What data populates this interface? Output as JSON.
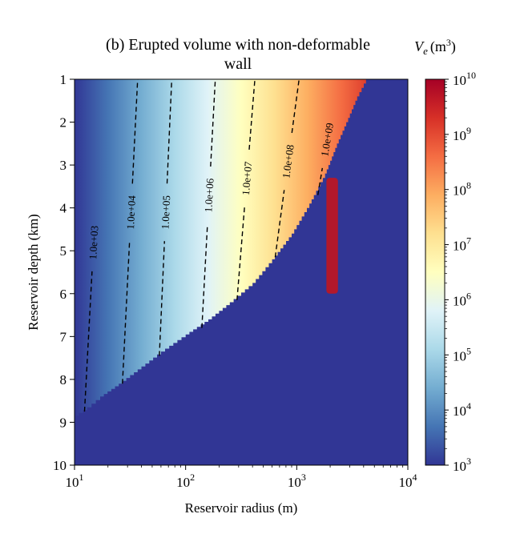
{
  "chart_data": {
    "type": "heatmap",
    "title_line1": "(b) Erupted volume with non-deformable",
    "title_line2": "wall",
    "xlabel": "Reservoir radius (m)",
    "ylabel": "Reservoir depth (km)",
    "x_scale": "log",
    "xlim": [
      10,
      10000
    ],
    "ylim": [
      10,
      1
    ],
    "x_ticks": [
      {
        "base": "10",
        "exp": "1",
        "value": 10
      },
      {
        "base": "10",
        "exp": "2",
        "value": 100
      },
      {
        "base": "10",
        "exp": "3",
        "value": 1000
      },
      {
        "base": "10",
        "exp": "4",
        "value": 10000
      }
    ],
    "y_ticks": [
      "1",
      "2",
      "3",
      "4",
      "5",
      "6",
      "7",
      "8",
      "9",
      "10"
    ],
    "colorbar": {
      "label_symbol": "V",
      "label_sub": "e",
      "label_unit": "(m",
      "label_unit_exp": "3",
      "label_unit_close": ")",
      "scale": "log",
      "range": [
        1000,
        10000000000
      ],
      "colormap": "RdYlBu_r",
      "ticks": [
        {
          "base": "10",
          "exp": "10",
          "value": 10000000000
        },
        {
          "base": "10",
          "exp": "9",
          "value": 1000000000
        },
        {
          "base": "10",
          "exp": "8",
          "value": 100000000
        },
        {
          "base": "10",
          "exp": "7",
          "value": 10000000
        },
        {
          "base": "10",
          "exp": "6",
          "value": 1000000
        },
        {
          "base": "10",
          "exp": "5",
          "value": 100000
        },
        {
          "base": "10",
          "exp": "4",
          "value": 10000
        },
        {
          "base": "10",
          "exp": "3",
          "value": 1000
        }
      ]
    },
    "no_eruption_boundary": [
      {
        "radius_m": 10,
        "depth_km": 8.85
      },
      {
        "radius_m": 13,
        "depth_km": 8.65
      },
      {
        "radius_m": 17,
        "depth_km": 8.4
      },
      {
        "radius_m": 25,
        "depth_km": 8.1
      },
      {
        "radius_m": 40,
        "depth_km": 7.7
      },
      {
        "radius_m": 60,
        "depth_km": 7.35
      },
      {
        "radius_m": 100,
        "depth_km": 6.95
      },
      {
        "radius_m": 160,
        "depth_km": 6.6
      },
      {
        "radius_m": 250,
        "depth_km": 6.2
      },
      {
        "radius_m": 400,
        "depth_km": 5.75
      },
      {
        "radius_m": 600,
        "depth_km": 5.2
      },
      {
        "radius_m": 900,
        "depth_km": 4.6
      },
      {
        "radius_m": 1300,
        "depth_km": 3.9
      },
      {
        "radius_m": 1800,
        "depth_km": 3.2
      },
      {
        "radius_m": 2300,
        "depth_km": 2.5
      },
      {
        "radius_m": 2900,
        "depth_km": 1.9
      },
      {
        "radius_m": 3500,
        "depth_km": 1.4
      },
      {
        "radius_m": 4200,
        "depth_km": 1.0
      }
    ],
    "isolated_region": {
      "radius_min_m": 1850,
      "radius_max_m": 2350,
      "depth_top_km": 3.3,
      "depth_bottom_km": 6.0
    },
    "contours": [
      {
        "label": "1.0e+03",
        "value": 1000,
        "points": [
          [
            12.3,
            8.75
          ],
          [
            14.3,
            5.6
          ]
        ],
        "label_at": [
          12.8,
          4.8
        ]
      },
      {
        "label": "1.0e+04",
        "value": 10000,
        "points": [
          [
            27,
            8.1
          ],
          [
            37,
            1.0
          ]
        ],
        "label_at": [
          29,
          4.1
        ]
      },
      {
        "label": "1.0e+05",
        "value": 100000,
        "points": [
          [
            58,
            7.45
          ],
          [
            75,
            1.0
          ]
        ],
        "label_at": [
          62,
          4.1
        ]
      },
      {
        "label": "1.0e+06",
        "value": 1000000,
        "points": [
          [
            140,
            6.8
          ],
          [
            185,
            1.0
          ]
        ],
        "label_at": [
          146,
          3.7
        ]
      },
      {
        "label": "1.0e+07",
        "value": 10000000,
        "points": [
          [
            290,
            6.15
          ],
          [
            420,
            1.0
          ]
        ],
        "label_at": [
          315,
          3.3
        ]
      },
      {
        "label": "1.0e+08",
        "value": 100000000,
        "points": [
          [
            640,
            5.15
          ],
          [
            1050,
            1.0
          ]
        ],
        "label_at": [
          745,
          2.9
        ]
      },
      {
        "label": "1.0e+09",
        "value": 1000000000,
        "points": [
          [
            1550,
            3.7
          ],
          [
            2050,
            1.8
          ]
        ],
        "label_at": [
          1800,
          2.4
        ]
      }
    ]
  }
}
